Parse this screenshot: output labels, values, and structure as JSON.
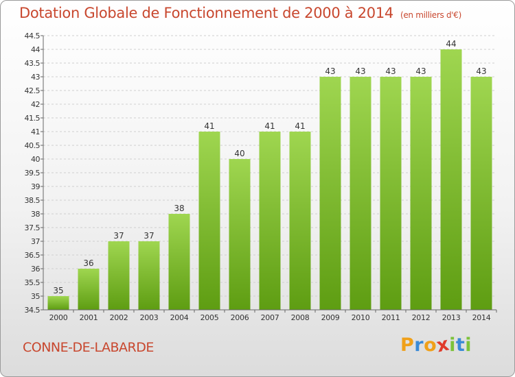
{
  "title": "Dotation Globale de Fonctionnement de 2000 à 2014",
  "unit_note": "(en milliers d'€)",
  "commune": "CONNE-DE-LABARDE",
  "logo": {
    "letters": [
      "P",
      "r",
      "o",
      "x",
      "i",
      "t",
      "i"
    ],
    "colors": [
      "#f0a019",
      "#3a8ad6",
      "#f0a019",
      "#e03a2a",
      "#7cc23a",
      "#3a8ad6",
      "#7cc23a"
    ]
  },
  "colors": {
    "bar_top": "#9fd650",
    "bar_bottom": "#5e9d12",
    "title": "#c8472e",
    "grid": "#cfcfcf",
    "axis_text": "#333333"
  },
  "chart_data": {
    "type": "bar",
    "title": "Dotation Globale de Fonctionnement de 2000 à 2014",
    "ylabel": "(en milliers d'€)",
    "xlabel": "",
    "categories": [
      "2000",
      "2001",
      "2002",
      "2003",
      "2004",
      "2005",
      "2006",
      "2007",
      "2008",
      "2009",
      "2010",
      "2011",
      "2012",
      "2013",
      "2014"
    ],
    "values": [
      35,
      36,
      37,
      37,
      38,
      41,
      40,
      41,
      41,
      43,
      43,
      43,
      43,
      44,
      43
    ],
    "ylim": [
      34.5,
      44.5
    ],
    "yticks": [
      "34.5",
      "35",
      "35.5",
      "36",
      "36.5",
      "37",
      "37.5",
      "38",
      "38.5",
      "39",
      "39.5",
      "40",
      "40.5",
      "41",
      "41.5",
      "42",
      "42.5",
      "43",
      "43.5",
      "44",
      "44.5"
    ],
    "grid": true
  }
}
